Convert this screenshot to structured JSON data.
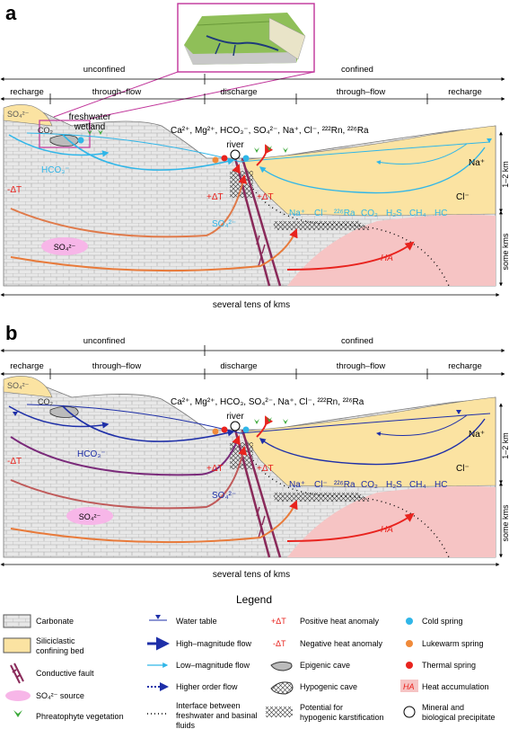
{
  "panels": [
    {
      "letter": "a",
      "top_labels": {
        "unconfined": "unconfined",
        "confined": "confined"
      },
      "zones": [
        "recharge",
        "through–flow",
        "discharge",
        "through–flow",
        "recharge"
      ],
      "wetland": "freshwater\nwetland",
      "river": "river",
      "ions_line": "Ca²⁺, Mg²⁺, HCO₃⁻, SO₄²⁻, Na⁺, Cl⁻, ²²²Rn, ²²⁶Ra",
      "gases": [
        "Na⁺",
        "Cl⁻",
        "²²⁶Ra",
        "CO₂",
        "H₂S",
        "CH₄",
        "HC"
      ],
      "scale_v1": "1–2 km",
      "scale_v2": "some kms",
      "scale_h": "several tens of kms",
      "labels": {
        "so4_top": "SO₄²⁻",
        "co2": "CO₂",
        "hco3": "HCO₃⁻",
        "minus_dt": "-ΔT",
        "plus_dt_left": "+ΔT",
        "plus_dt_right": "+ΔT",
        "so4_mid": "SO₄²⁻",
        "so4_source": "SO₄²⁻",
        "na": "Na⁺",
        "cl": "Cl⁻",
        "ha": "HA"
      }
    },
    {
      "letter": "b",
      "top_labels": {
        "unconfined": "unconfined",
        "confined": "confined"
      },
      "zones": [
        "recharge",
        "through–flow",
        "discharge",
        "through–flow",
        "recharge"
      ],
      "river": "river",
      "ions_line": "Ca²⁺, Mg²⁺, HCO₃, SO₄²⁻, Na⁺, Cl⁻, ²²²Rn, ²²⁶Ra",
      "gases": [
        "Na⁺",
        "Cl⁻",
        "²²⁶Ra",
        "CO₂",
        "H₂S",
        "CH₄",
        "HC"
      ],
      "scale_v1": "1–2 km",
      "scale_v2": "some kms",
      "scale_h": "several tens of kms",
      "labels": {
        "so4_top": "SO₄²⁻",
        "co2": "CO₂",
        "hco3": "HCO₃⁻",
        "minus_dt": "-ΔT",
        "plus_dt_left": "+ΔT",
        "plus_dt_right": "+ΔT",
        "so4_mid": "SO₄²⁻",
        "so4_source": "SO₄²⁻",
        "na": "Na⁺",
        "cl": "Cl⁻",
        "ha": "HA"
      }
    }
  ],
  "legend": {
    "title": "Legend",
    "items": [
      {
        "label": "Carbonate",
        "icon": "carbonate-swatch"
      },
      {
        "label": "Siliciclastic confining bed",
        "icon": "siliciclastic-swatch"
      },
      {
        "label": "Conductive fault",
        "icon": "fault-icon"
      },
      {
        "label": "SO₄²⁻ source",
        "icon": "so4-source-icon"
      },
      {
        "label": "Phreatophyte vegetation",
        "icon": "vegetation-icon"
      },
      {
        "label": "Water table",
        "icon": "water-table-icon"
      },
      {
        "label": "High–magnitude flow",
        "icon": "high-flow-arrow-icon"
      },
      {
        "label": "Low–magnitude flow",
        "icon": "low-flow-arrow-icon"
      },
      {
        "label": "Higher order flow",
        "icon": "higher-order-flow-icon"
      },
      {
        "label": "Interface between freshwater and basinal fluids",
        "icon": "interface-dotted-icon"
      },
      {
        "label": "Positive heat anomaly",
        "icon": "plus-dt-icon",
        "symbol": "+ΔT"
      },
      {
        "label": "Negative heat anomaly",
        "icon": "minus-dt-icon",
        "symbol": "-ΔT"
      },
      {
        "label": "Epigenic cave",
        "icon": "epigenic-cave-icon"
      },
      {
        "label": "Hypogenic cave",
        "icon": "hypogenic-cave-icon"
      },
      {
        "label": "Potential for hypogenic karstification",
        "icon": "crosshatch-icon"
      },
      {
        "label": "Cold spring",
        "icon": "cold-spring-icon"
      },
      {
        "label": "Lukewarm spring",
        "icon": "lukewarm-spring-icon"
      },
      {
        "label": "Thermal spring",
        "icon": "thermal-spring-icon"
      },
      {
        "label": "Heat accumulation",
        "icon": "heat-accumulation-icon",
        "symbol": "HA"
      },
      {
        "label": "Mineral and biological precipitate",
        "icon": "precipitate-icon"
      }
    ]
  },
  "colors": {
    "carbonate": "#e6e6e6",
    "siliciclastic": "#fbe3a2",
    "cold": "#30b6e8",
    "cold_b": "#1e2fa8",
    "warm": "#f08a3a",
    "hot": "#e8231e",
    "heat": "#f6c4c4",
    "so4_source": "#f7b6e8",
    "fault": "#8a2a5a",
    "veg": "#3aa838"
  }
}
